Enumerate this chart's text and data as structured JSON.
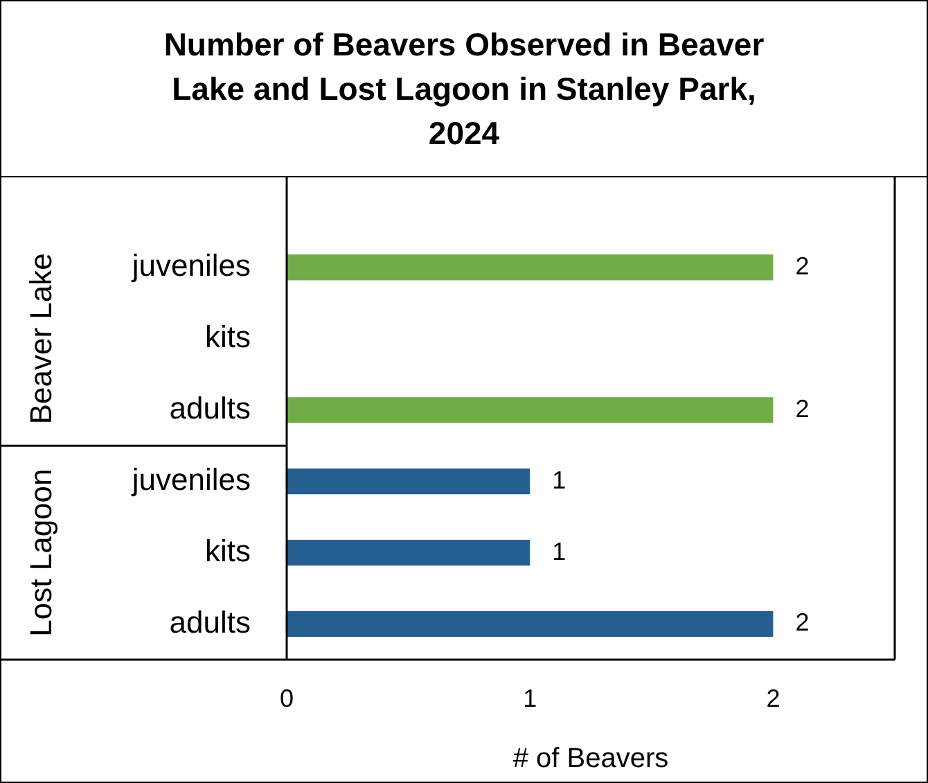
{
  "chart_data": {
    "type": "bar",
    "orientation": "horizontal",
    "title": "Number of Beavers Observed in Beaver Lake and Lost Lagoon in Stanley Park, 2024",
    "xlabel": "# of Beavers",
    "categories": [
      "juveniles",
      "kits",
      "adults",
      "juveniles",
      "kits",
      "adults"
    ],
    "values": [
      2,
      null,
      2,
      1,
      1,
      2
    ],
    "colors": [
      "#70ad47",
      "#70ad47",
      "#70ad47",
      "#255e91",
      "#255e91",
      "#255e91"
    ],
    "annotations": [
      "Beaver Lake",
      "Lost Lagoon"
    ],
    "xlim": [
      0,
      2.5
    ],
    "xticks": [
      0,
      1,
      2
    ],
    "grid": false,
    "legend": false,
    "data_labels": true
  }
}
